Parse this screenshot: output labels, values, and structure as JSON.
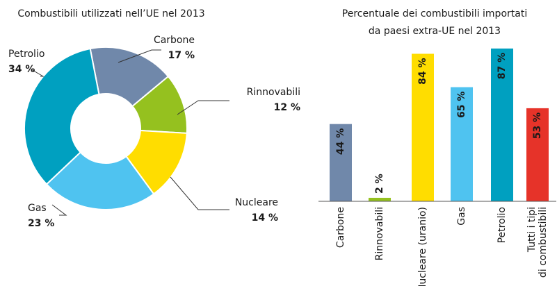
{
  "chart_data": [
    {
      "type": "donut",
      "title": "Combustibili utilizzati nell’UE nel 2013",
      "categories": [
        "Carbone",
        "Rinnovabili",
        "Nucleare",
        "Gas",
        "Petrolio"
      ],
      "values": [
        17,
        12,
        14,
        23,
        34
      ],
      "value_labels": [
        "17 %",
        "12 %",
        "14 %",
        "23 %",
        "34 %"
      ],
      "colors": [
        "#7088aa",
        "#95c11f",
        "#ffdd00",
        "#4fc3f0",
        "#00a0c0"
      ]
    },
    {
      "type": "bar",
      "title": [
        "Percentuale dei combustibili importati",
        "da paesi extra-UE nel 2013"
      ],
      "categories": [
        "Carbone",
        "Rinnovabili",
        "Nucleare (uranio)",
        "Gas",
        "Petrolio",
        [
          "Tutti i tipi",
          "di combustibili"
        ]
      ],
      "values": [
        44,
        2,
        84,
        65,
        87,
        53
      ],
      "value_labels": [
        "44 %",
        "2 %",
        "84 %",
        "65 %",
        "87 %",
        "53 %"
      ],
      "colors": [
        "#7088aa",
        "#95c11f",
        "#ffdd00",
        "#4fc3f0",
        "#00a0c0",
        "#e63329"
      ],
      "ylim": [
        0,
        100
      ]
    }
  ]
}
